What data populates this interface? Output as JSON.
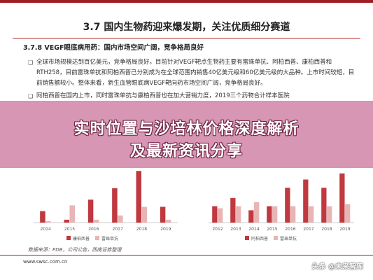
{
  "header": {
    "title": "3.7 国内生物药迎来爆发期，关注优质细分赛道"
  },
  "section": {
    "title": "3.7.8 VEGF眼底病用药：国内市场空间广阔，竞争格局良好"
  },
  "bullets": [
    "全球市场规模达到百亿美元，竞争格局良好。目前针对VEGF靶点生物药主要有雷珠单抗、阿柏西普、康柏西普和RTH258，目前雷珠单抗和阿柏西普已分别成为在全球范围内销售40亿美元级和60亿美元级的大品种。上市时间较短，目前销售额较小。整体来看，新生血管眼底病VEGF靶向药市场空间广阔，竞争格局良好。",
    "阿柏西普在国内上市，同时雷珠单抗与康柏西普也在加大营销力度，2019三个药物合计样本医院"
  ],
  "banner": {
    "line1": "实时位置与沙培林价格深度解析",
    "line2": "及最新资讯分享"
  },
  "chart_data": [
    {
      "type": "bar",
      "categories": [
        "2014",
        "2015",
        "2016",
        "2017",
        "2018",
        "2019"
      ],
      "series": [
        {
          "name": "康柏西普",
          "values": [
            40,
            10,
            80,
            120,
            180,
            55
          ],
          "color": "#c0393f"
        },
        {
          "name": "雷珠单抗",
          "values": [
            5,
            60,
            10,
            25,
            55,
            10
          ],
          "color": "#e8b5b5"
        }
      ],
      "ylim": [
        0,
        200
      ]
    },
    {
      "type": "bar",
      "categories": [
        "2012",
        "2013",
        "2014",
        "2015",
        "2016",
        "2017",
        "2018",
        "2019"
      ],
      "series": [
        {
          "name": "",
          "values": [
            40,
            60,
            30,
            40,
            85,
            105,
            85,
            120
          ],
          "color": "#c0393f"
        },
        {
          "name": "",
          "values": [
            35,
            40,
            50,
            40,
            40,
            40,
            40,
            45
          ],
          "color": "#e8b5b5"
        }
      ],
      "ylim": [
        0,
        140
      ]
    }
  ],
  "legends": {
    "left": [
      "康柏西普",
      "雷珠单抗"
    ],
    "right": [
      "阿柏西普",
      "雷珠单抗"
    ]
  },
  "footer": {
    "source": "数据来源：PDB，公司公告，西南证券整理",
    "website": "www.swsc.com.cn",
    "watermark": "头条 @未来智库"
  },
  "colors": {
    "accent": "#9e1f24",
    "bar_dark": "#c0393f",
    "bar_light": "#e8b5b5",
    "banner": "#c86e96"
  }
}
